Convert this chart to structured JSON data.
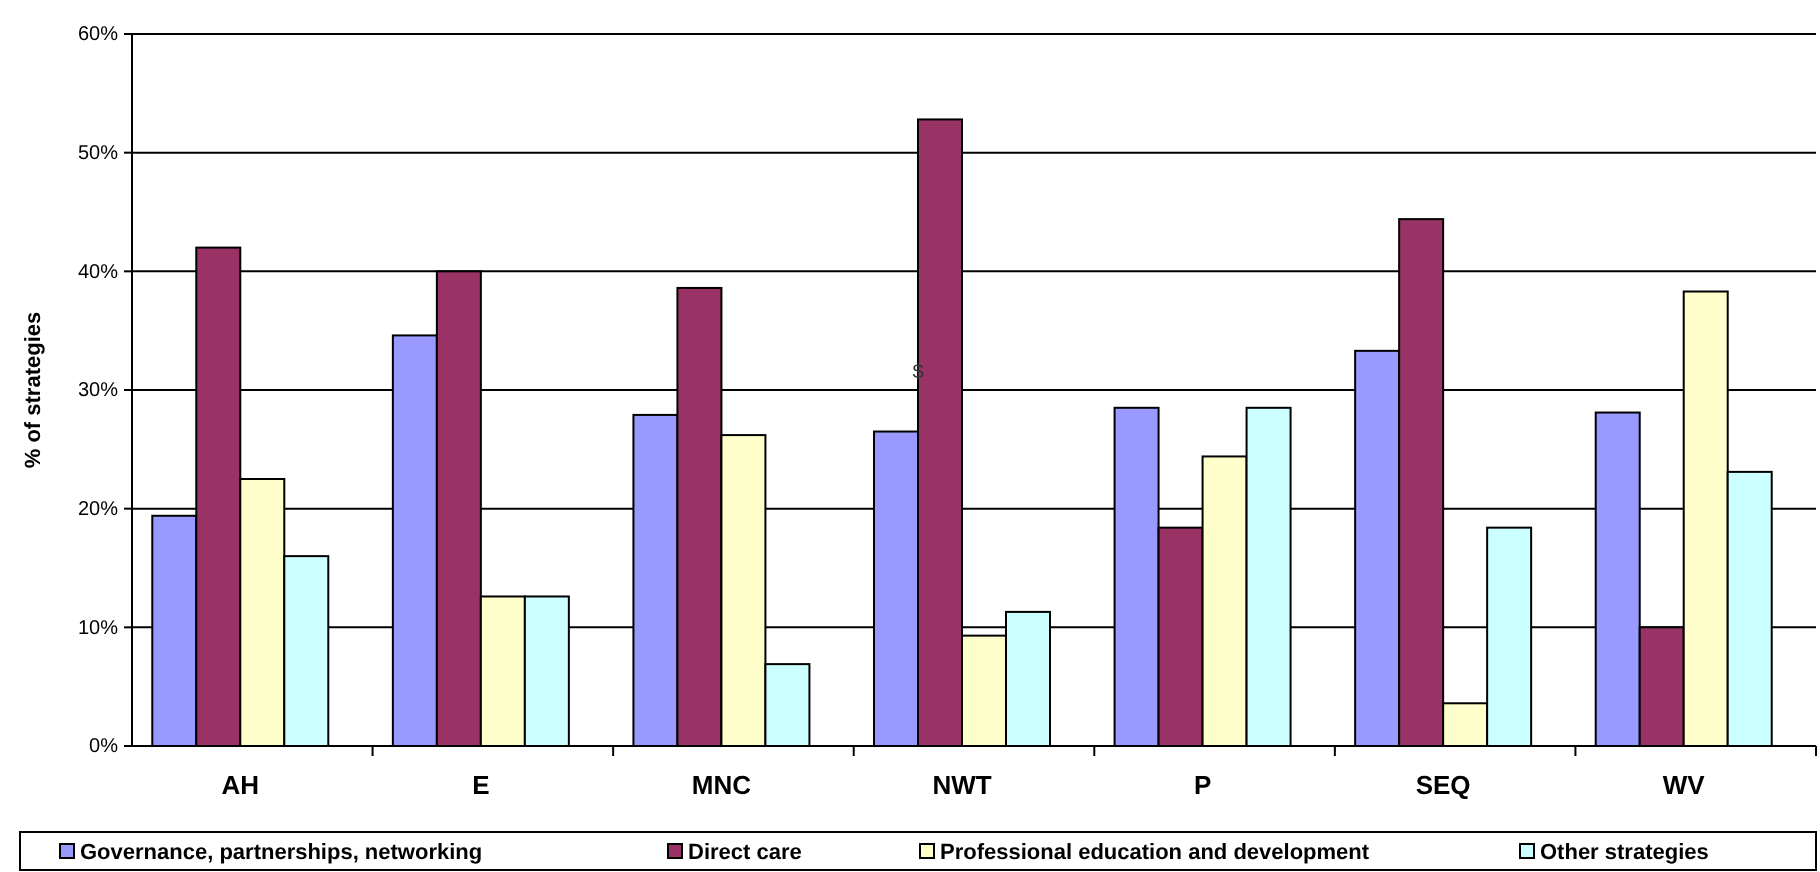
{
  "chart_data": {
    "type": "bar",
    "ylabel": "% of strategies",
    "categories": [
      "AH",
      "E",
      "MNC",
      "NWT",
      "P",
      "SEQ",
      "WV"
    ],
    "series": [
      {
        "name": "Governance, partnerships, networking",
        "color": "#9999ff",
        "values": [
          19.4,
          34.6,
          27.9,
          26.5,
          28.5,
          33.3,
          28.1
        ]
      },
      {
        "name": "Direct care",
        "color": "#993366",
        "values": [
          42.0,
          40.0,
          38.6,
          52.8,
          18.4,
          44.4,
          10.0
        ]
      },
      {
        "name": "Professional education and development",
        "color": "#ffffcc",
        "values": [
          22.5,
          12.6,
          26.2,
          9.3,
          24.4,
          3.6,
          38.3
        ]
      },
      {
        "name": "Other strategies",
        "color": "#ccffff",
        "values": [
          16.0,
          12.6,
          6.9,
          11.3,
          28.5,
          18.4,
          23.1
        ]
      }
    ],
    "ylim": [
      0,
      60
    ],
    "yticks": [
      {
        "value": 0,
        "label": "0%"
      },
      {
        "value": 10,
        "label": "10%"
      },
      {
        "value": 20,
        "label": "20%"
      },
      {
        "value": 30,
        "label": "30%"
      },
      {
        "value": 40,
        "label": "40%"
      },
      {
        "value": 50,
        "label": "50%"
      },
      {
        "value": 60,
        "label": "60%"
      }
    ],
    "grid": "y",
    "legend": "bottom",
    "annotations": [
      {
        "text": "$",
        "x": "NWT",
        "y": 31
      }
    ]
  }
}
